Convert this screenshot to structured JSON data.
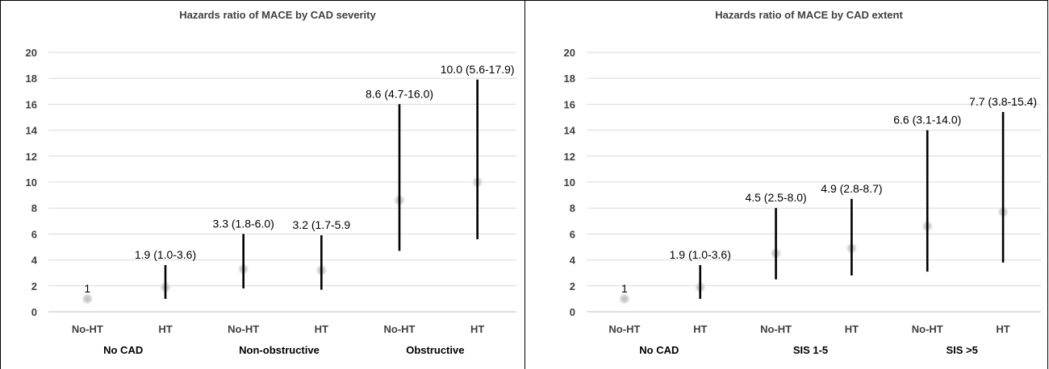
{
  "chart_data": [
    {
      "type": "errorbar",
      "title": "Hazards ratio of MACE by CAD severity",
      "ylim": [
        0,
        20
      ],
      "yticks": [
        "0",
        "2",
        "4",
        "6",
        "8",
        "10",
        "12",
        "14",
        "16",
        "18",
        "20"
      ],
      "grid": true,
      "categories": [
        "No-HT",
        "HT",
        "No-HT",
        "HT",
        "No-HT",
        "HT"
      ],
      "groups": [
        "No CAD",
        "Non-obstructive",
        "Obstructive"
      ],
      "points": [
        {
          "estimate": 1.0,
          "lower": null,
          "upper": null,
          "label": "1"
        },
        {
          "estimate": 1.9,
          "lower": 1.0,
          "upper": 3.6,
          "label": "1.9 (1.0-3.6)"
        },
        {
          "estimate": 3.3,
          "lower": 1.8,
          "upper": 6.0,
          "label": "3.3 (1.8-6.0)"
        },
        {
          "estimate": 3.2,
          "lower": 1.7,
          "upper": 5.9,
          "label": "3.2 (1.7-5.9"
        },
        {
          "estimate": 8.6,
          "lower": 4.7,
          "upper": 16.0,
          "label": "8.6 (4.7-16.0)"
        },
        {
          "estimate": 10.0,
          "lower": 5.6,
          "upper": 17.9,
          "label": "10.0 (5.6-17.9)"
        }
      ]
    },
    {
      "type": "errorbar",
      "title": "Hazards ratio of MACE by CAD extent",
      "ylim": [
        0,
        20
      ],
      "yticks": [
        "0",
        "2",
        "4",
        "6",
        "8",
        "10",
        "12",
        "14",
        "16",
        "18",
        "20"
      ],
      "grid": true,
      "categories": [
        "No-HT",
        "HT",
        "No-HT",
        "HT",
        "No-HT",
        "HT"
      ],
      "groups": [
        "No CAD",
        "SIS 1-5",
        "SIS >5"
      ],
      "points": [
        {
          "estimate": 1.0,
          "lower": null,
          "upper": null,
          "label": "1"
        },
        {
          "estimate": 1.9,
          "lower": 1.0,
          "upper": 3.6,
          "label": "1.9 (1.0-3.6)"
        },
        {
          "estimate": 4.5,
          "lower": 2.5,
          "upper": 8.0,
          "label": "4.5 (2.5-8.0)"
        },
        {
          "estimate": 4.9,
          "lower": 2.8,
          "upper": 8.7,
          "label": "4.9 (2.8-8.7)"
        },
        {
          "estimate": 6.6,
          "lower": 3.1,
          "upper": 14.0,
          "label": "6.6 (3.1-14.0)"
        },
        {
          "estimate": 7.7,
          "lower": 3.8,
          "upper": 15.4,
          "label": "7.7 (3.8-15.4)"
        }
      ]
    }
  ],
  "colors": {
    "bar": "#000000",
    "grid": "#d9d9d9",
    "point": "#c8c8c8",
    "text": "#404040"
  }
}
